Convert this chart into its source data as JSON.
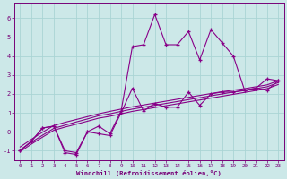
{
  "xlabel": "Windchill (Refroidissement éolien,°C)",
  "background_color": "#cce8e8",
  "line_color": "#880088",
  "x_hours": [
    0,
    1,
    2,
    3,
    4,
    5,
    6,
    7,
    8,
    9,
    10,
    11,
    12,
    13,
    14,
    15,
    16,
    17,
    18,
    19,
    20,
    21,
    22,
    23
  ],
  "temp_line": [
    -1,
    -0.5,
    0.2,
    0.3,
    -1.0,
    -1.1,
    0.0,
    0.3,
    -0.1,
    1.1,
    4.5,
    4.6,
    6.2,
    4.6,
    4.6,
    5.3,
    3.8,
    5.4,
    4.7,
    4.0,
    2.2,
    2.3,
    2.8,
    2.7
  ],
  "windchill_line": [
    -1.0,
    -0.5,
    0.2,
    0.3,
    -1.1,
    -1.2,
    0.0,
    -0.1,
    -0.2,
    1.0,
    2.3,
    1.1,
    1.5,
    1.3,
    1.3,
    2.1,
    1.4,
    2.0,
    2.1,
    2.1,
    2.2,
    2.3,
    2.2,
    2.7
  ],
  "reg_line1": [
    -0.95,
    -0.55,
    -0.18,
    0.18,
    0.35,
    0.52,
    0.68,
    0.85,
    0.95,
    1.08,
    1.2,
    1.3,
    1.4,
    1.5,
    1.6,
    1.7,
    1.8,
    1.9,
    2.0,
    2.1,
    2.18,
    2.28,
    2.38,
    2.6
  ],
  "reg_line2": [
    -0.8,
    -0.4,
    -0.02,
    0.33,
    0.5,
    0.65,
    0.8,
    0.95,
    1.08,
    1.2,
    1.32,
    1.42,
    1.52,
    1.62,
    1.72,
    1.82,
    1.92,
    2.02,
    2.12,
    2.2,
    2.28,
    2.38,
    2.48,
    2.7
  ],
  "reg_line3": [
    -1.05,
    -0.65,
    -0.28,
    0.08,
    0.25,
    0.4,
    0.56,
    0.72,
    0.82,
    0.95,
    1.08,
    1.18,
    1.28,
    1.38,
    1.48,
    1.58,
    1.68,
    1.78,
    1.88,
    1.98,
    2.08,
    2.18,
    2.28,
    2.5
  ],
  "ylim": [
    -1.5,
    6.8
  ],
  "yticks": [
    -1,
    0,
    1,
    2,
    3,
    4,
    5,
    6
  ],
  "xticks": [
    0,
    1,
    2,
    3,
    4,
    5,
    6,
    7,
    8,
    9,
    10,
    11,
    12,
    13,
    14,
    15,
    16,
    17,
    18,
    19,
    20,
    21,
    22,
    23
  ],
  "grid_color": "#aad4d4",
  "spine_color": "#770077"
}
